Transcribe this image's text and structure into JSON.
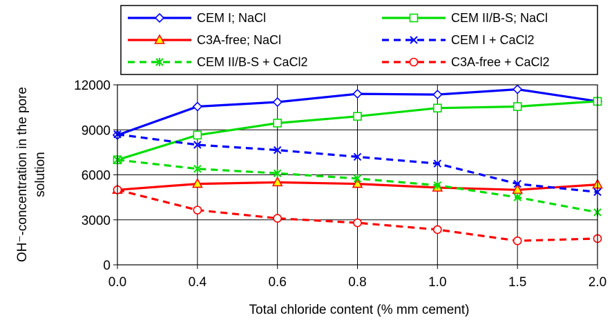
{
  "chart_data": {
    "type": "line",
    "xlabel": "Total chloride content (% mm cement)",
    "ylabel_line1": "OH⁻-concentration in the pore",
    "ylabel_line2": "solution",
    "categories": [
      "0.0",
      "0.4",
      "0.6",
      "0.8",
      "1.0",
      "1.5",
      "2.0"
    ],
    "ylim": [
      0,
      12000
    ],
    "yticks": [
      0,
      3000,
      6000,
      9000,
      12000
    ],
    "grid": true,
    "legend_position": "top",
    "series": [
      {
        "name": "CEM I; NaCl",
        "values": [
          8650,
          10550,
          10850,
          11400,
          11350,
          11700,
          10900
        ],
        "color": "#0000ff",
        "dash": "solid",
        "marker": "diamond"
      },
      {
        "name": "CEM II/B-S; NaCl",
        "values": [
          7000,
          8650,
          9450,
          9900,
          10450,
          10550,
          10900
        ],
        "color": "#00dd00",
        "dash": "solid",
        "marker": "square"
      },
      {
        "name": "C3A-free; NaCl",
        "values": [
          5000,
          5400,
          5500,
          5400,
          5150,
          5000,
          5350
        ],
        "color": "#ff0000",
        "dash": "solid",
        "marker": "triangle"
      },
      {
        "name": "CEM I + CaCl2",
        "values": [
          8700,
          8000,
          7650,
          7200,
          6750,
          5400,
          4850
        ],
        "color": "#0000ff",
        "dash": "dashed",
        "marker": "x"
      },
      {
        "name": "CEM II/B-S + CaCl2",
        "values": [
          7000,
          6400,
          6100,
          5750,
          5300,
          4500,
          3500
        ],
        "color": "#00dd00",
        "dash": "dashed",
        "marker": "asterisk"
      },
      {
        "name": "C3A-free + CaCl2",
        "values": [
          5000,
          3650,
          3100,
          2800,
          2350,
          1600,
          1750
        ],
        "color": "#ff0000",
        "dash": "dashed",
        "marker": "circle"
      }
    ]
  }
}
